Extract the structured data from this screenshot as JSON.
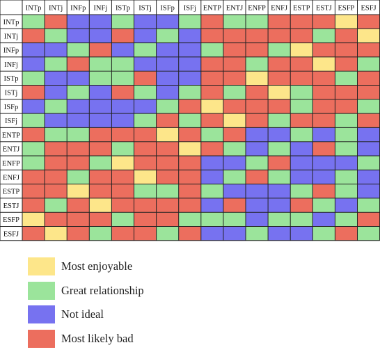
{
  "chart_data": {
    "type": "heatmap",
    "types": [
      "INTp",
      "INTj",
      "INFp",
      "INFj",
      "ISTp",
      "ISTj",
      "ISFp",
      "ISFj",
      "ENTP",
      "ENTJ",
      "ENFP",
      "ENFJ",
      "ESTP",
      "ESTJ",
      "ESFP",
      "ESFJ"
    ],
    "color_key": {
      "Y": "#fde68a",
      "G": "#9be49b",
      "B": "#7772f0",
      "R": "#ec6e5e"
    },
    "matrix": [
      [
        "G",
        "R",
        "B",
        "B",
        "G",
        "B",
        "B",
        "G",
        "R",
        "G",
        "G",
        "R",
        "R",
        "R",
        "Y",
        "R"
      ],
      [
        "R",
        "G",
        "B",
        "B",
        "R",
        "B",
        "G",
        "B",
        "R",
        "R",
        "R",
        "R",
        "R",
        "G",
        "R",
        "Y"
      ],
      [
        "B",
        "B",
        "G",
        "R",
        "B",
        "G",
        "B",
        "B",
        "G",
        "R",
        "R",
        "G",
        "Y",
        "R",
        "R",
        "R"
      ],
      [
        "B",
        "G",
        "R",
        "G",
        "G",
        "B",
        "B",
        "B",
        "R",
        "R",
        "G",
        "R",
        "R",
        "Y",
        "R",
        "G"
      ],
      [
        "G",
        "B",
        "B",
        "G",
        "G",
        "R",
        "B",
        "B",
        "R",
        "R",
        "Y",
        "R",
        "R",
        "R",
        "G",
        "R"
      ],
      [
        "R",
        "B",
        "G",
        "B",
        "R",
        "G",
        "B",
        "G",
        "R",
        "G",
        "R",
        "Y",
        "G",
        "R",
        "R",
        "R"
      ],
      [
        "B",
        "G",
        "B",
        "B",
        "B",
        "B",
        "G",
        "R",
        "Y",
        "R",
        "R",
        "R",
        "G",
        "R",
        "R",
        "G"
      ],
      [
        "G",
        "B",
        "B",
        "B",
        "B",
        "G",
        "R",
        "G",
        "R",
        "Y",
        "R",
        "G",
        "R",
        "R",
        "G",
        "R"
      ],
      [
        "R",
        "G",
        "G",
        "R",
        "R",
        "R",
        "Y",
        "R",
        "G",
        "R",
        "B",
        "B",
        "G",
        "B",
        "G",
        "B"
      ],
      [
        "G",
        "R",
        "R",
        "R",
        "G",
        "R",
        "R",
        "Y",
        "R",
        "G",
        "B",
        "G",
        "B",
        "R",
        "G",
        "B"
      ],
      [
        "G",
        "R",
        "R",
        "G",
        "Y",
        "R",
        "R",
        "R",
        "B",
        "B",
        "G",
        "R",
        "B",
        "B",
        "B",
        "G"
      ],
      [
        "R",
        "R",
        "G",
        "R",
        "R",
        "Y",
        "R",
        "R",
        "B",
        "G",
        "R",
        "G",
        "B",
        "B",
        "G",
        "B"
      ],
      [
        "R",
        "R",
        "Y",
        "R",
        "R",
        "G",
        "G",
        "R",
        "G",
        "B",
        "B",
        "B",
        "G",
        "R",
        "G",
        "B"
      ],
      [
        "R",
        "G",
        "R",
        "Y",
        "R",
        "R",
        "R",
        "R",
        "B",
        "R",
        "B",
        "B",
        "R",
        "G",
        "B",
        "G"
      ],
      [
        "Y",
        "R",
        "R",
        "R",
        "G",
        "R",
        "R",
        "G",
        "G",
        "G",
        "B",
        "G",
        "G",
        "B",
        "G",
        "R"
      ],
      [
        "R",
        "Y",
        "R",
        "G",
        "R",
        "R",
        "G",
        "R",
        "B",
        "B",
        "G",
        "B",
        "B",
        "G",
        "R",
        "G"
      ]
    ],
    "legend": [
      {
        "key": "Y",
        "label": "Most enjoyable"
      },
      {
        "key": "G",
        "label": "Great relationship"
      },
      {
        "key": "B",
        "label": "Not ideal"
      },
      {
        "key": "R",
        "label": "Most likely bad"
      }
    ]
  }
}
